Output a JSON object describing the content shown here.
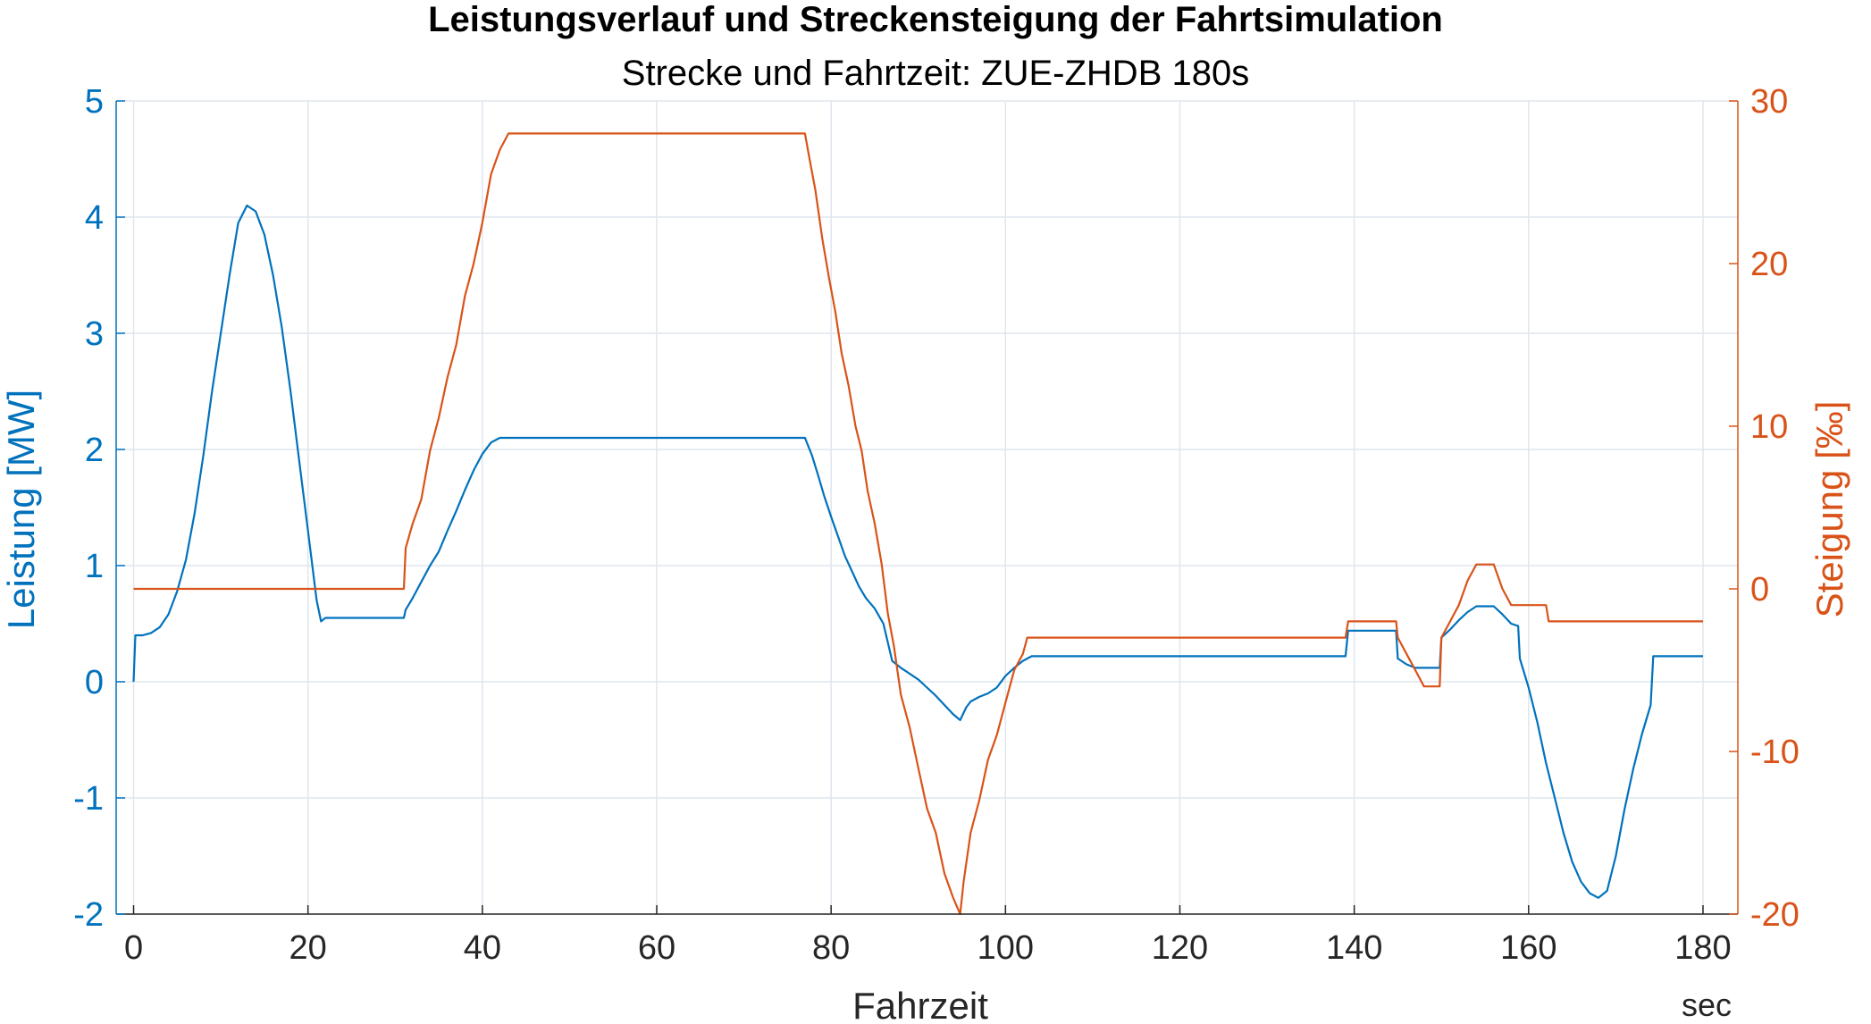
{
  "chart_data": {
    "type": "line",
    "title": "Leistungsverlauf und Streckensteigung der Fahrtsimulation",
    "subtitle": "Strecke und Fahrtzeit: ZUE-ZHDB 180s",
    "xlabel": "Fahrzeit",
    "xunit": "sec",
    "xlim": [
      -2,
      184
    ],
    "xticks": [
      0,
      20,
      40,
      60,
      80,
      100,
      120,
      140,
      160,
      180
    ],
    "grid": true,
    "left_axis": {
      "label": "Leistung [MW]",
      "ylim": [
        -2,
        5
      ],
      "ticks": [
        -2,
        -1,
        0,
        1,
        2,
        3,
        4,
        5
      ],
      "color": "#0072BD"
    },
    "right_axis": {
      "label": "Steigung [‰]",
      "ylim": [
        -20,
        30
      ],
      "ticks": [
        -20,
        -10,
        0,
        10,
        20,
        30
      ],
      "color": "#D95319"
    },
    "series": [
      {
        "axis": "left",
        "color": "#0072BD",
        "points": [
          [
            0,
            0
          ],
          [
            0.2,
            0.4
          ],
          [
            1,
            0.4
          ],
          [
            2,
            0.42
          ],
          [
            3,
            0.47
          ],
          [
            4,
            0.58
          ],
          [
            5,
            0.78
          ],
          [
            6,
            1.05
          ],
          [
            7,
            1.45
          ],
          [
            8,
            1.95
          ],
          [
            9,
            2.5
          ],
          [
            10,
            3.0
          ],
          [
            11,
            3.5
          ],
          [
            12,
            3.95
          ],
          [
            13,
            4.1
          ],
          [
            14,
            4.05
          ],
          [
            15,
            3.85
          ],
          [
            16,
            3.5
          ],
          [
            17,
            3.05
          ],
          [
            18,
            2.5
          ],
          [
            19,
            1.9
          ],
          [
            20,
            1.3
          ],
          [
            21,
            0.7
          ],
          [
            21.5,
            0.52
          ],
          [
            22,
            0.55
          ],
          [
            31,
            0.55
          ],
          [
            31.2,
            0.62
          ],
          [
            32,
            0.72
          ],
          [
            33,
            0.86
          ],
          [
            34,
            1.0
          ],
          [
            35,
            1.12
          ],
          [
            36,
            1.3
          ],
          [
            37,
            1.47
          ],
          [
            38,
            1.65
          ],
          [
            39,
            1.82
          ],
          [
            40,
            1.96
          ],
          [
            41,
            2.06
          ],
          [
            42,
            2.1
          ],
          [
            77,
            2.1
          ],
          [
            77.8,
            1.95
          ],
          [
            78.5,
            1.78
          ],
          [
            79.2,
            1.6
          ],
          [
            80,
            1.42
          ],
          [
            80.8,
            1.25
          ],
          [
            81.6,
            1.08
          ],
          [
            82.4,
            0.95
          ],
          [
            83.2,
            0.82
          ],
          [
            84,
            0.72
          ],
          [
            85,
            0.63
          ],
          [
            86,
            0.5
          ],
          [
            87,
            0.18
          ],
          [
            88,
            0.12
          ],
          [
            89,
            0.07
          ],
          [
            90,
            0.02
          ],
          [
            91,
            -0.05
          ],
          [
            92,
            -0.12
          ],
          [
            93,
            -0.2
          ],
          [
            94,
            -0.28
          ],
          [
            94.8,
            -0.33
          ],
          [
            95.5,
            -0.22
          ],
          [
            96,
            -0.17
          ],
          [
            97,
            -0.13
          ],
          [
            98,
            -0.1
          ],
          [
            99,
            -0.05
          ],
          [
            100,
            0.05
          ],
          [
            101,
            0.12
          ],
          [
            102,
            0.18
          ],
          [
            103,
            0.22
          ],
          [
            139,
            0.22
          ],
          [
            139.3,
            0.44
          ],
          [
            144.8,
            0.44
          ],
          [
            145,
            0.2
          ],
          [
            146,
            0.15
          ],
          [
            147,
            0.12
          ],
          [
            149.8,
            0.12
          ],
          [
            150,
            0.38
          ],
          [
            151,
            0.45
          ],
          [
            152,
            0.53
          ],
          [
            153,
            0.6
          ],
          [
            154,
            0.65
          ],
          [
            156,
            0.65
          ],
          [
            157,
            0.58
          ],
          [
            158,
            0.5
          ],
          [
            158.8,
            0.48
          ],
          [
            159,
            0.2
          ],
          [
            160,
            -0.05
          ],
          [
            161,
            -0.35
          ],
          [
            162,
            -0.7
          ],
          [
            163,
            -1.0
          ],
          [
            164,
            -1.3
          ],
          [
            165,
            -1.55
          ],
          [
            166,
            -1.72
          ],
          [
            167,
            -1.82
          ],
          [
            168,
            -1.86
          ],
          [
            169,
            -1.8
          ],
          [
            170,
            -1.5
          ],
          [
            171,
            -1.1
          ],
          [
            172,
            -0.75
          ],
          [
            173,
            -0.45
          ],
          [
            174,
            -0.2
          ],
          [
            174.3,
            0.22
          ],
          [
            180,
            0.22
          ]
        ]
      },
      {
        "axis": "right",
        "color": "#D95319",
        "points": [
          [
            0,
            0
          ],
          [
            31,
            0
          ],
          [
            31.2,
            2.5
          ],
          [
            32,
            4
          ],
          [
            33,
            5.5
          ],
          [
            34,
            8.5
          ],
          [
            35,
            10.5
          ],
          [
            36,
            13
          ],
          [
            37,
            15
          ],
          [
            38,
            18
          ],
          [
            39,
            20
          ],
          [
            40,
            22.5
          ],
          [
            41,
            25.5
          ],
          [
            42,
            27
          ],
          [
            43,
            28
          ],
          [
            77,
            28
          ],
          [
            77.5,
            26.5
          ],
          [
            78.2,
            24.5
          ],
          [
            79,
            21.5
          ],
          [
            79.8,
            19
          ],
          [
            80.5,
            17
          ],
          [
            81.2,
            14.5
          ],
          [
            82,
            12.5
          ],
          [
            82.8,
            10
          ],
          [
            83.5,
            8.5
          ],
          [
            84.2,
            6
          ],
          [
            85,
            4
          ],
          [
            85.8,
            1.5
          ],
          [
            86.5,
            -1.5
          ],
          [
            87.2,
            -3.5
          ],
          [
            88,
            -6.5
          ],
          [
            89,
            -8.5
          ],
          [
            90,
            -11
          ],
          [
            91,
            -13.5
          ],
          [
            92,
            -15
          ],
          [
            93,
            -17.5
          ],
          [
            94,
            -19
          ],
          [
            94.8,
            -20
          ],
          [
            95.2,
            -18
          ],
          [
            96,
            -15
          ],
          [
            97,
            -13
          ],
          [
            98,
            -10.5
          ],
          [
            99,
            -9
          ],
          [
            100,
            -7
          ],
          [
            101,
            -5
          ],
          [
            102,
            -4
          ],
          [
            102.5,
            -3
          ],
          [
            139,
            -3
          ],
          [
            139.3,
            -2
          ],
          [
            144.8,
            -2
          ],
          [
            145,
            -3
          ],
          [
            146,
            -4
          ],
          [
            147,
            -5
          ],
          [
            148,
            -6
          ],
          [
            149.8,
            -6
          ],
          [
            150,
            -3
          ],
          [
            151,
            -2
          ],
          [
            152,
            -1
          ],
          [
            153,
            0.5
          ],
          [
            154,
            1.5
          ],
          [
            156,
            1.5
          ],
          [
            157,
            0
          ],
          [
            158,
            -1
          ],
          [
            162,
            -1
          ],
          [
            162.3,
            -2
          ],
          [
            180,
            -2
          ]
        ]
      }
    ]
  }
}
